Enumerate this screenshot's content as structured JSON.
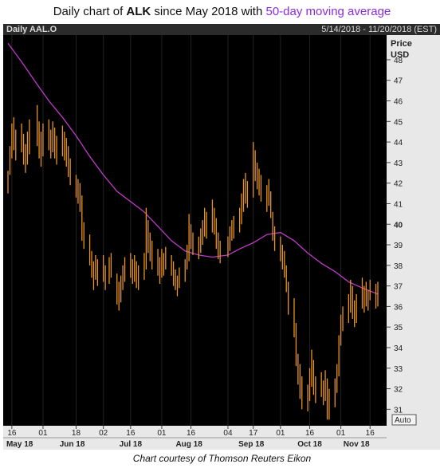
{
  "title": {
    "prefix": "Daily chart of ",
    "ticker": "ALK",
    "middle": " since May 2018 with ",
    "ma_label": "50-day moving average"
  },
  "header": {
    "symbol": "Daily AAL.O",
    "date_range": "5/14/2018 - 11/20/2018 (EST)"
  },
  "axis": {
    "price_label": "Price",
    "currency_label": "USD",
    "auto_label": "Auto"
  },
  "caption": "Chart courtesy of Thomson Reuters Eikon",
  "colors": {
    "price": "#e8951e",
    "ma": "#c03ac8",
    "background": "#000000",
    "axis_bg": "#e8e8e8"
  },
  "chart_data": {
    "type": "line",
    "title": "Daily chart of ALK since May 2018 with 50-day moving average",
    "ylabel": "Price USD",
    "ylim": [
      30.2,
      49.2
    ],
    "y_ticks": [
      31,
      32,
      33,
      34,
      35,
      36,
      37,
      38,
      39,
      40,
      41,
      42,
      43,
      44,
      45,
      46,
      47,
      48
    ],
    "y_bold_ticks": [
      40
    ],
    "x_day_ticks": [
      {
        "label": "16",
        "date": "2018-05-16"
      },
      {
        "label": "01",
        "date": "2018-06-01"
      },
      {
        "label": "18",
        "date": "2018-06-18"
      },
      {
        "label": "02",
        "date": "2018-07-02"
      },
      {
        "label": "16",
        "date": "2018-07-16"
      },
      {
        "label": "01",
        "date": "2018-08-01"
      },
      {
        "label": "16",
        "date": "2018-08-16"
      },
      {
        "label": "04",
        "date": "2018-09-04"
      },
      {
        "label": "17",
        "date": "2018-09-17"
      },
      {
        "label": "01",
        "date": "2018-10-01"
      },
      {
        "label": "16",
        "date": "2018-10-16"
      },
      {
        "label": "01",
        "date": "2018-11-01"
      },
      {
        "label": "16",
        "date": "2018-11-16"
      }
    ],
    "x_month_labels": [
      {
        "label": "May 18",
        "date": "2018-05-20"
      },
      {
        "label": "Jun 18",
        "date": "2018-06-16"
      },
      {
        "label": "Jul 18",
        "date": "2018-07-16"
      },
      {
        "label": "Aug 18",
        "date": "2018-08-15"
      },
      {
        "label": "Sep 18",
        "date": "2018-09-16"
      },
      {
        "label": "Oct 18",
        "date": "2018-10-16"
      },
      {
        "label": "Nov 18",
        "date": "2018-11-09"
      }
    ],
    "x_range": [
      "2018-05-14",
      "2018-11-20"
    ],
    "series": [
      {
        "name": "AAL.O",
        "style": "high-low bars",
        "points": [
          [
            "2018-05-14",
            42.6,
            41.5
          ],
          [
            "2018-05-15",
            43.8,
            42.4
          ],
          [
            "2018-05-16",
            44.9,
            43.2
          ],
          [
            "2018-05-17",
            45.2,
            43.6
          ],
          [
            "2018-05-18",
            44.6,
            43.1
          ],
          [
            "2018-05-21",
            44.9,
            43.5
          ],
          [
            "2018-05-22",
            44.4,
            42.9
          ],
          [
            "2018-05-23",
            43.9,
            42.5
          ],
          [
            "2018-05-24",
            44.5,
            42.9
          ],
          [
            "2018-05-25",
            45.1,
            43.4
          ],
          [
            "2018-05-29",
            45.8,
            43.8
          ],
          [
            "2018-05-30",
            45.0,
            43.2
          ],
          [
            "2018-05-31",
            44.5,
            42.8
          ],
          [
            "2018-06-01",
            44.9,
            43.3
          ],
          [
            "2018-06-04",
            45.1,
            43.6
          ],
          [
            "2018-06-05",
            44.6,
            43.2
          ],
          [
            "2018-06-06",
            45.0,
            43.5
          ],
          [
            "2018-06-07",
            44.7,
            43.2
          ],
          [
            "2018-06-08",
            44.3,
            42.9
          ],
          [
            "2018-06-11",
            44.8,
            43.3
          ],
          [
            "2018-06-12",
            44.5,
            43.1
          ],
          [
            "2018-06-13",
            44.2,
            42.8
          ],
          [
            "2018-06-14",
            43.8,
            42.3
          ],
          [
            "2018-06-15",
            43.2,
            41.9
          ],
          [
            "2018-06-18",
            42.4,
            41.3
          ],
          [
            "2018-06-19",
            42.2,
            41.0
          ],
          [
            "2018-06-20",
            42.0,
            40.6
          ],
          [
            "2018-06-21",
            41.4,
            39.2
          ],
          [
            "2018-06-22",
            40.1,
            38.8
          ],
          [
            "2018-06-25",
            39.5,
            38.0
          ],
          [
            "2018-06-26",
            38.7,
            37.4
          ],
          [
            "2018-06-27",
            38.2,
            36.8
          ],
          [
            "2018-06-28",
            38.5,
            37.3
          ],
          [
            "2018-06-29",
            38.3,
            37.0
          ],
          [
            "2018-07-02",
            38.5,
            37.2
          ],
          [
            "2018-07-03",
            38.0,
            36.8
          ],
          [
            "2018-07-05",
            38.4,
            37.1
          ],
          [
            "2018-07-06",
            38.6,
            37.4
          ],
          [
            "2018-07-09",
            37.6,
            36.1
          ],
          [
            "2018-07-10",
            37.2,
            35.8
          ],
          [
            "2018-07-11",
            37.5,
            36.2
          ],
          [
            "2018-07-12",
            38.0,
            36.8
          ],
          [
            "2018-07-13",
            38.4,
            37.2
          ],
          [
            "2018-07-16",
            38.6,
            37.4
          ],
          [
            "2018-07-17",
            38.3,
            37.1
          ],
          [
            "2018-07-18",
            38.5,
            37.2
          ],
          [
            "2018-07-19",
            38.2,
            36.9
          ],
          [
            "2018-07-20",
            38.0,
            36.8
          ],
          [
            "2018-07-23",
            38.6,
            37.3
          ],
          [
            "2018-07-24",
            40.8,
            37.8
          ],
          [
            "2018-07-25",
            40.2,
            38.6
          ],
          [
            "2018-07-26",
            39.6,
            38.2
          ],
          [
            "2018-07-27",
            39.2,
            37.8
          ],
          [
            "2018-07-30",
            38.8,
            37.5
          ],
          [
            "2018-07-31",
            38.4,
            37.1
          ],
          [
            "2018-08-01",
            38.8,
            37.4
          ],
          [
            "2018-08-02",
            38.6,
            37.5
          ],
          [
            "2018-08-03",
            38.9,
            37.8
          ],
          [
            "2018-08-06",
            38.5,
            37.5
          ],
          [
            "2018-08-07",
            38.2,
            37.0
          ],
          [
            "2018-08-08",
            37.8,
            36.8
          ],
          [
            "2018-08-09",
            37.5,
            36.5
          ],
          [
            "2018-08-10",
            37.9,
            36.9
          ],
          [
            "2018-08-13",
            38.3,
            37.2
          ],
          [
            "2018-08-14",
            39.0,
            37.8
          ],
          [
            "2018-08-15",
            40.5,
            38.2
          ],
          [
            "2018-08-16",
            40.0,
            38.8
          ],
          [
            "2018-08-17",
            39.6,
            38.5
          ],
          [
            "2018-08-20",
            39.4,
            38.3
          ],
          [
            "2018-08-21",
            39.8,
            38.6
          ],
          [
            "2018-08-22",
            40.2,
            39.0
          ],
          [
            "2018-08-23",
            40.8,
            39.4
          ],
          [
            "2018-08-24",
            40.6,
            39.3
          ],
          [
            "2018-08-27",
            41.2,
            39.6
          ],
          [
            "2018-08-28",
            40.8,
            39.5
          ],
          [
            "2018-08-29",
            40.3,
            38.8
          ],
          [
            "2018-08-30",
            39.6,
            38.3
          ],
          [
            "2018-08-31",
            39.2,
            38.1
          ],
          [
            "2018-09-04",
            39.4,
            38.4
          ],
          [
            "2018-09-05",
            39.9,
            38.7
          ],
          [
            "2018-09-06",
            40.2,
            39.2
          ],
          [
            "2018-09-07",
            40.4,
            39.3
          ],
          [
            "2018-09-10",
            40.8,
            39.6
          ],
          [
            "2018-09-11",
            41.5,
            40.0
          ],
          [
            "2018-09-12",
            42.2,
            40.6
          ],
          [
            "2018-09-13",
            42.5,
            41.0
          ],
          [
            "2018-09-14",
            42.1,
            40.8
          ],
          [
            "2018-09-17",
            44.0,
            41.3
          ],
          [
            "2018-09-18",
            43.6,
            42.1
          ],
          [
            "2018-09-19",
            43.0,
            41.7
          ],
          [
            "2018-09-20",
            42.7,
            41.4
          ],
          [
            "2018-09-21",
            42.4,
            41.1
          ],
          [
            "2018-09-24",
            41.9,
            40.6
          ],
          [
            "2018-09-25",
            42.2,
            40.9
          ],
          [
            "2018-09-26",
            41.6,
            40.3
          ],
          [
            "2018-09-27",
            40.6,
            39.2
          ],
          [
            "2018-09-28",
            39.9,
            38.7
          ],
          [
            "2018-10-01",
            39.4,
            38.2
          ],
          [
            "2018-10-02",
            39.0,
            37.8
          ],
          [
            "2018-10-03",
            38.7,
            37.4
          ],
          [
            "2018-10-04",
            38.0,
            36.7
          ],
          [
            "2018-10-05",
            37.2,
            35.6
          ],
          [
            "2018-10-08",
            36.4,
            34.5
          ],
          [
            "2018-10-09",
            35.2,
            33.1
          ],
          [
            "2018-10-10",
            33.7,
            32.2
          ],
          [
            "2018-10-11",
            33.2,
            31.5
          ],
          [
            "2018-10-12",
            32.6,
            31.0
          ],
          [
            "2018-10-15",
            32.2,
            30.9
          ],
          [
            "2018-10-16",
            33.0,
            31.4
          ],
          [
            "2018-10-17",
            33.9,
            32.1
          ],
          [
            "2018-10-18",
            33.4,
            31.7
          ],
          [
            "2018-10-19",
            32.6,
            31.3
          ],
          [
            "2018-10-22",
            32.8,
            31.6
          ],
          [
            "2018-10-23",
            32.4,
            31.2
          ],
          [
            "2018-10-24",
            32.9,
            31.4
          ],
          [
            "2018-10-25",
            32.5,
            30.5
          ],
          [
            "2018-10-26",
            32.0,
            30.5
          ],
          [
            "2018-10-29",
            32.5,
            31.1
          ],
          [
            "2018-10-30",
            33.2,
            31.8
          ],
          [
            "2018-10-31",
            34.6,
            32.6
          ],
          [
            "2018-11-01",
            35.6,
            34.1
          ],
          [
            "2018-11-02",
            36.0,
            34.8
          ],
          [
            "2018-11-05",
            36.6,
            35.2
          ],
          [
            "2018-11-06",
            37.3,
            35.7
          ],
          [
            "2018-11-07",
            37.0,
            35.4
          ],
          [
            "2018-11-08",
            36.3,
            35.0
          ],
          [
            "2018-11-09",
            36.6,
            35.2
          ],
          [
            "2018-11-12",
            37.4,
            35.9
          ],
          [
            "2018-11-13",
            37.0,
            35.7
          ],
          [
            "2018-11-14",
            37.2,
            36.0
          ],
          [
            "2018-11-15",
            36.8,
            35.8
          ],
          [
            "2018-11-16",
            37.3,
            36.3
          ],
          [
            "2018-11-19",
            37.1,
            35.9
          ],
          [
            "2018-11-20",
            37.2,
            36.0
          ]
        ]
      },
      {
        "name": "50-day moving average",
        "points": [
          [
            "2018-05-14",
            48.8
          ],
          [
            "2018-05-21",
            47.9
          ],
          [
            "2018-05-29",
            46.8
          ],
          [
            "2018-06-04",
            46.0
          ],
          [
            "2018-06-11",
            45.2
          ],
          [
            "2018-06-18",
            44.3
          ],
          [
            "2018-06-25",
            43.3
          ],
          [
            "2018-07-02",
            42.4
          ],
          [
            "2018-07-09",
            41.6
          ],
          [
            "2018-07-16",
            41.1
          ],
          [
            "2018-07-23",
            40.6
          ],
          [
            "2018-07-30",
            39.9
          ],
          [
            "2018-08-06",
            39.2
          ],
          [
            "2018-08-13",
            38.7
          ],
          [
            "2018-08-20",
            38.5
          ],
          [
            "2018-08-27",
            38.4
          ],
          [
            "2018-09-04",
            38.5
          ],
          [
            "2018-09-10",
            38.8
          ],
          [
            "2018-09-17",
            39.1
          ],
          [
            "2018-09-24",
            39.5
          ],
          [
            "2018-10-01",
            39.6
          ],
          [
            "2018-10-08",
            39.2
          ],
          [
            "2018-10-15",
            38.6
          ],
          [
            "2018-10-22",
            38.1
          ],
          [
            "2018-10-29",
            37.7
          ],
          [
            "2018-11-05",
            37.2
          ],
          [
            "2018-11-12",
            36.9
          ],
          [
            "2018-11-20",
            36.6
          ]
        ]
      }
    ]
  }
}
